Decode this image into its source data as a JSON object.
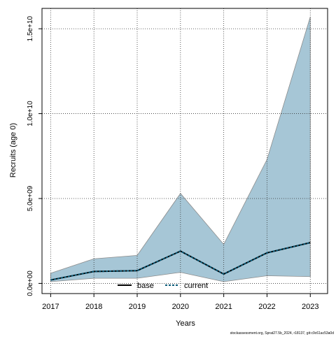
{
  "chart_data": {
    "type": "area",
    "xlabel": "Years",
    "ylabel": "Recruits (age 0)",
    "x": [
      2017,
      2018,
      2019,
      2020,
      2021,
      2022,
      2023
    ],
    "x_ticks": [
      "2017",
      "2018",
      "2019",
      "2020",
      "2021",
      "2022",
      "2023"
    ],
    "y_ticks": [
      {
        "value": 0,
        "label": "0.0e+00"
      },
      {
        "value": 5000000000,
        "label": "5.0e+09"
      },
      {
        "value": 10000000000,
        "label": "1.0e+10"
      },
      {
        "value": 15000000000,
        "label": "1.5e+10"
      }
    ],
    "xlim": [
      2016.8,
      2023.4
    ],
    "ylim": [
      -600000000,
      16200000000
    ],
    "grid": true,
    "legend_position": "bottom-center",
    "series": [
      {
        "name": "base",
        "values": [
          200000000,
          700000000,
          750000000,
          1900000000,
          550000000,
          1800000000,
          2400000000
        ],
        "color": "#000000",
        "style": "solid"
      },
      {
        "name": "current",
        "values": [
          200000000,
          700000000,
          750000000,
          1900000000,
          550000000,
          1800000000,
          2400000000
        ],
        "color": "#0a5a78",
        "style": "dashed"
      }
    ],
    "band": {
      "lower": [
        100000000,
        300000000,
        300000000,
        650000000,
        100000000,
        450000000,
        400000000
      ],
      "upper": [
        600000000,
        1450000000,
        1650000000,
        5300000000,
        2300000000,
        7300000000,
        15700000000
      ],
      "color": "#a6c6d6",
      "edge_color": "#8c8c8c"
    },
    "footnote": "stockassessment.org, Sprat27.5b_2024, r18137, git:c9c61ac53a0d"
  }
}
